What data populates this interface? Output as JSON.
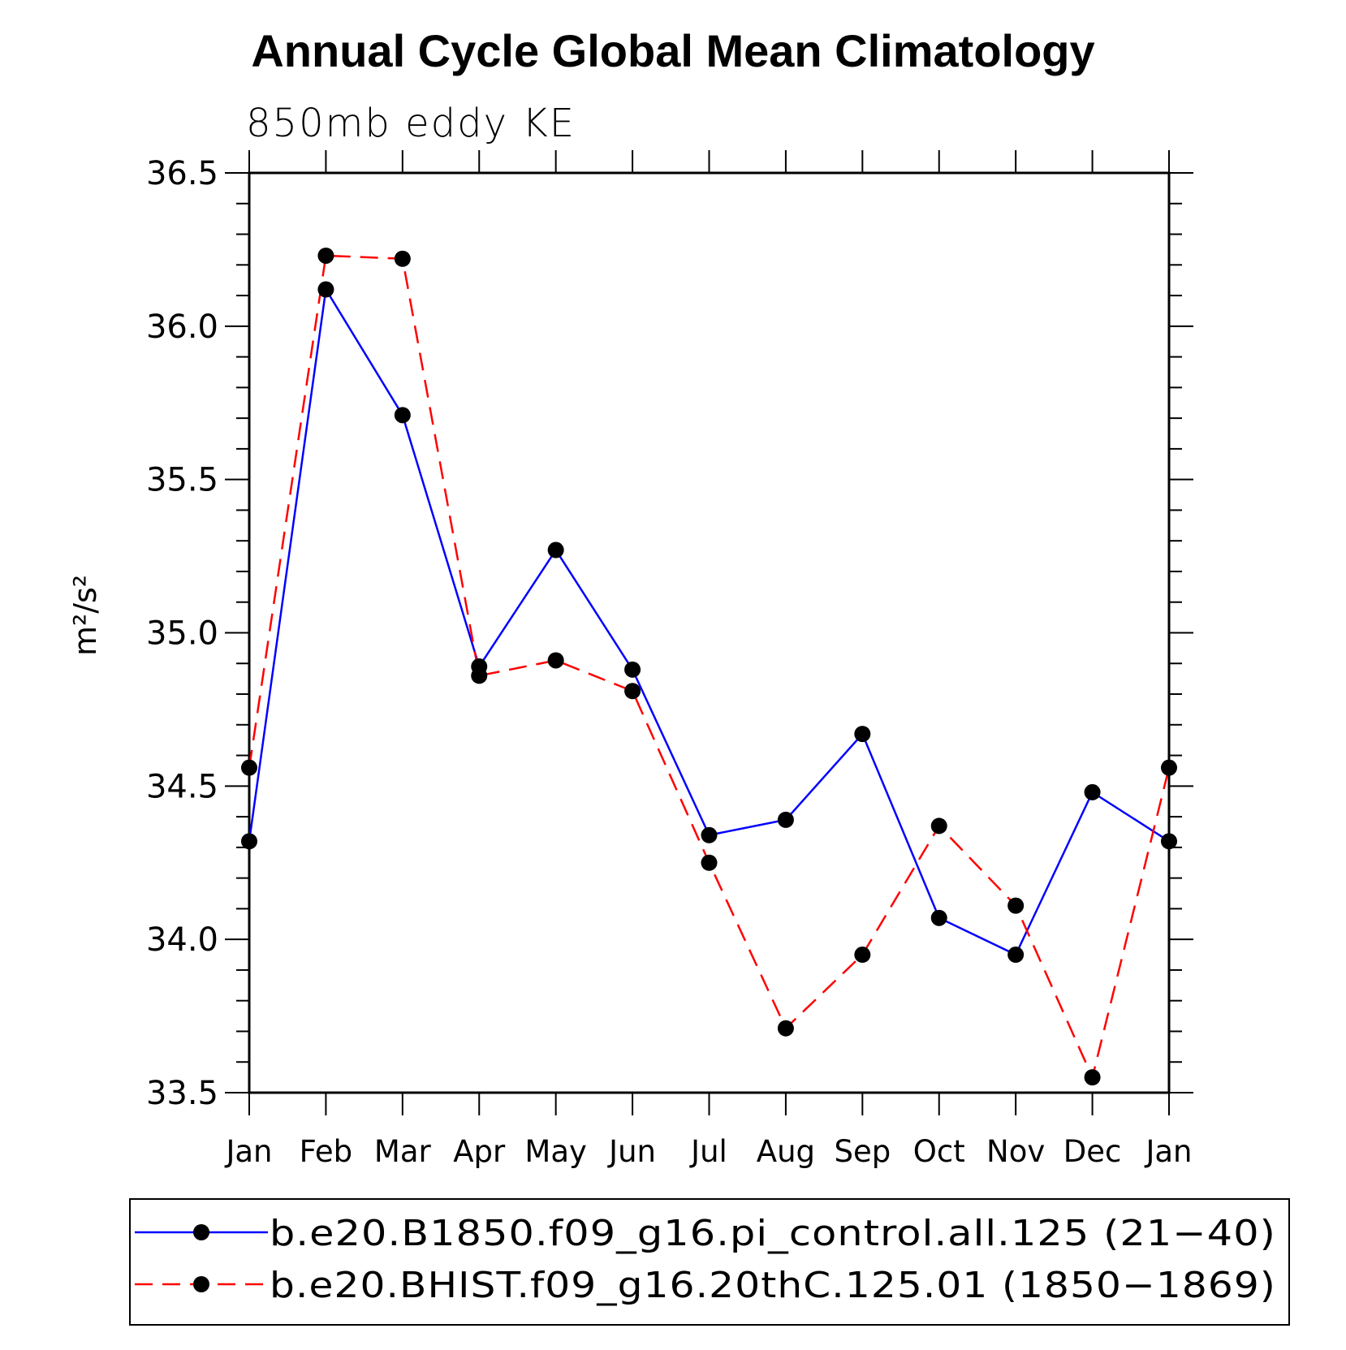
{
  "chart_data": {
    "type": "line",
    "title": "Annual Cycle Global Mean Climatology",
    "subtitle": "850mb eddy KE",
    "ylabel": "m²/s²",
    "ylim": [
      33.5,
      36.5
    ],
    "yticks": [
      "33.5",
      "34.0",
      "34.5",
      "35.0",
      "35.5",
      "36.0",
      "36.5"
    ],
    "categories": [
      "Jan",
      "Feb",
      "Mar",
      "Apr",
      "May",
      "Jun",
      "Jul",
      "Aug",
      "Sep",
      "Oct",
      "Nov",
      "Dec",
      "Jan"
    ],
    "series": [
      {
        "name": "b.e20.B1850.f09_g16.pi_control.all.125 (21−40)",
        "color": "#0000ff",
        "dash": "solid",
        "values": [
          34.32,
          36.12,
          35.71,
          34.89,
          35.27,
          34.88,
          34.34,
          34.39,
          34.67,
          34.07,
          33.95,
          34.48,
          34.32
        ]
      },
      {
        "name": "b.e20.BHIST.f09_g16.20thC.125.01 (1850−1869)",
        "color": "#ff0000",
        "dash": "dashed",
        "values": [
          34.56,
          36.23,
          36.22,
          34.86,
          34.91,
          34.81,
          34.25,
          33.71,
          33.95,
          34.37,
          34.11,
          33.55,
          34.56
        ]
      }
    ],
    "legend_position": "bottom"
  }
}
